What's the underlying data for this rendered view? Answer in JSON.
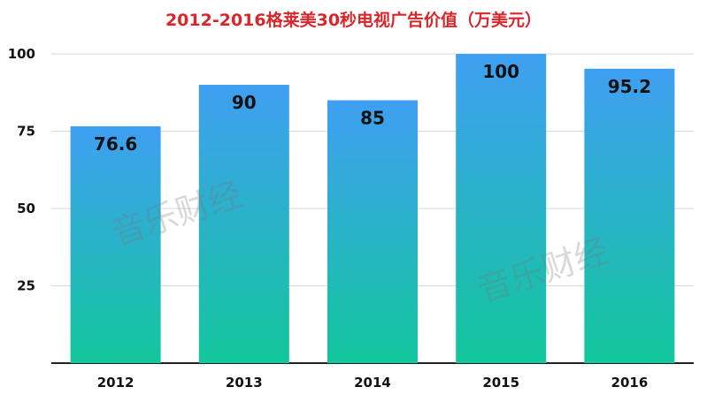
{
  "chart_data": {
    "type": "bar",
    "title": "2012-2016格莱美30秒电视广告价值（万美元）",
    "categories": [
      "2012",
      "2013",
      "2014",
      "2015",
      "2016"
    ],
    "values": [
      76.6,
      90,
      85,
      100,
      95.2
    ],
    "value_labels": [
      "76.6",
      "90",
      "85",
      "100",
      "95.2"
    ],
    "ylim": [
      0,
      100
    ],
    "yticks": [
      25,
      50,
      75,
      100
    ],
    "grid": true,
    "legend": "none",
    "xlabel": "",
    "ylabel": ""
  },
  "watermark": "音乐财经",
  "colors": {
    "title": "#d8262b",
    "bar_top": "#3f9ff2",
    "bar_bottom": "#12c79c",
    "grid": "#d9d9d9",
    "axis": "#222222",
    "label": "#111111"
  }
}
